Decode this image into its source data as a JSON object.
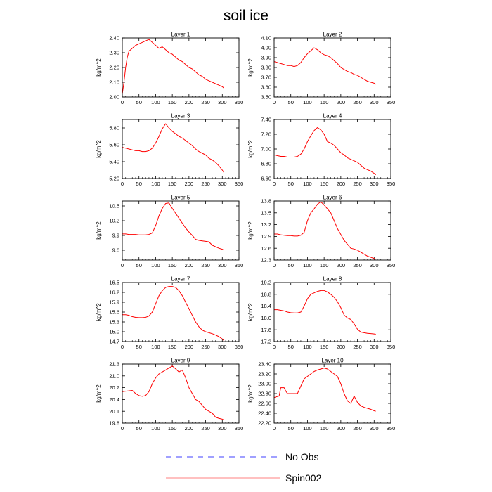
{
  "figure": {
    "title": "soil ice"
  },
  "legend": {
    "entries": [
      {
        "label": "No Obs",
        "color": "#4040ff",
        "dash": "dashed"
      },
      {
        "label": "Spin002",
        "color": "#ff8080",
        "dash": "solid"
      }
    ]
  },
  "colors": {
    "line": "#ff0000",
    "axis": "#000000"
  },
  "chart_data": [
    {
      "type": "line",
      "title": "Layer 1",
      "ylabel": "kg/m^2",
      "xlim": [
        0,
        350
      ],
      "ylim": [
        2.0,
        2.4
      ],
      "xticks": [
        "0",
        "50",
        "100",
        "150",
        "200",
        "250",
        "300",
        "350"
      ],
      "yticks": [
        "2.00",
        "2.10",
        "2.20",
        "2.30",
        "2.40"
      ],
      "series": [
        {
          "name": "Spin002",
          "x": [
            0,
            5,
            10,
            15,
            20,
            30,
            40,
            50,
            60,
            70,
            80,
            90,
            100,
            110,
            120,
            130,
            140,
            150,
            160,
            170,
            180,
            190,
            200,
            210,
            220,
            230,
            240,
            250,
            260,
            270,
            280,
            290,
            300,
            305
          ],
          "values": [
            2.02,
            2.1,
            2.2,
            2.27,
            2.31,
            2.33,
            2.35,
            2.36,
            2.37,
            2.38,
            2.39,
            2.37,
            2.35,
            2.33,
            2.34,
            2.32,
            2.3,
            2.29,
            2.27,
            2.25,
            2.24,
            2.22,
            2.2,
            2.19,
            2.17,
            2.15,
            2.14,
            2.12,
            2.11,
            2.1,
            2.09,
            2.08,
            2.07,
            2.06
          ]
        }
      ]
    },
    {
      "type": "line",
      "title": "Layer 2",
      "ylabel": "kg/m^2",
      "xlim": [
        0,
        350
      ],
      "ylim": [
        3.5,
        4.1
      ],
      "xticks": [
        "0",
        "50",
        "100",
        "150",
        "200",
        "250",
        "300",
        "350"
      ],
      "yticks": [
        "3.50",
        "3.60",
        "3.70",
        "3.80",
        "3.90",
        "4.00",
        "4.10"
      ],
      "series": [
        {
          "name": "Spin002",
          "x": [
            0,
            10,
            20,
            30,
            40,
            50,
            60,
            70,
            80,
            90,
            100,
            110,
            120,
            130,
            140,
            150,
            160,
            170,
            180,
            190,
            200,
            210,
            220,
            230,
            240,
            250,
            260,
            270,
            280,
            290,
            300,
            305
          ],
          "values": [
            3.86,
            3.85,
            3.84,
            3.83,
            3.82,
            3.82,
            3.81,
            3.82,
            3.85,
            3.9,
            3.94,
            3.97,
            4.0,
            3.98,
            3.95,
            3.93,
            3.92,
            3.9,
            3.87,
            3.84,
            3.8,
            3.78,
            3.76,
            3.75,
            3.73,
            3.72,
            3.7,
            3.68,
            3.66,
            3.65,
            3.64,
            3.63
          ]
        }
      ]
    },
    {
      "type": "line",
      "title": "Layer 3",
      "ylabel": "kg/m^2",
      "xlim": [
        0,
        350
      ],
      "ylim": [
        5.2,
        5.9
      ],
      "xticks": [
        "0",
        "50",
        "100",
        "150",
        "200",
        "250",
        "300",
        "350"
      ],
      "yticks": [
        "5.20",
        "5.40",
        "5.60",
        "5.80"
      ],
      "series": [
        {
          "name": "Spin002",
          "x": [
            0,
            10,
            20,
            30,
            40,
            50,
            60,
            70,
            80,
            90,
            100,
            110,
            120,
            130,
            140,
            150,
            160,
            170,
            180,
            190,
            200,
            210,
            220,
            230,
            240,
            250,
            260,
            270,
            280,
            290,
            300,
            305
          ],
          "values": [
            5.57,
            5.56,
            5.55,
            5.54,
            5.53,
            5.53,
            5.52,
            5.52,
            5.53,
            5.56,
            5.62,
            5.7,
            5.79,
            5.85,
            5.8,
            5.76,
            5.73,
            5.7,
            5.68,
            5.65,
            5.62,
            5.59,
            5.55,
            5.52,
            5.5,
            5.48,
            5.44,
            5.42,
            5.39,
            5.35,
            5.3,
            5.27
          ]
        }
      ]
    },
    {
      "type": "line",
      "title": "Layer 4",
      "ylabel": "kg/m^2",
      "xlim": [
        0,
        350
      ],
      "ylim": [
        6.6,
        7.4
      ],
      "xticks": [
        "0",
        "50",
        "100",
        "150",
        "200",
        "250",
        "300",
        "350"
      ],
      "yticks": [
        "6.60",
        "6.80",
        "7.00",
        "7.20",
        "7.40"
      ],
      "series": [
        {
          "name": "Spin002",
          "x": [
            0,
            10,
            20,
            30,
            40,
            50,
            60,
            70,
            80,
            90,
            100,
            110,
            120,
            130,
            140,
            150,
            160,
            170,
            180,
            190,
            200,
            210,
            220,
            230,
            240,
            250,
            260,
            270,
            280,
            290,
            300,
            305
          ],
          "values": [
            6.92,
            6.91,
            6.9,
            6.9,
            6.89,
            6.89,
            6.89,
            6.9,
            6.93,
            7.0,
            7.1,
            7.18,
            7.25,
            7.29,
            7.26,
            7.2,
            7.1,
            7.08,
            7.05,
            7.0,
            6.95,
            6.92,
            6.88,
            6.86,
            6.84,
            6.82,
            6.78,
            6.74,
            6.72,
            6.7,
            6.67,
            6.65
          ]
        }
      ]
    },
    {
      "type": "line",
      "title": "Layer 5",
      "ylabel": "kg/m^2",
      "xlim": [
        0,
        350
      ],
      "ylim": [
        9.4,
        10.6
      ],
      "xticks": [
        "0",
        "50",
        "100",
        "150",
        "200",
        "250",
        "300",
        "350"
      ],
      "yticks": [
        "9.6",
        "9.9",
        "10.2",
        "10.5"
      ],
      "series": [
        {
          "name": "Spin002",
          "x": [
            0,
            10,
            20,
            30,
            40,
            50,
            60,
            70,
            80,
            90,
            100,
            110,
            120,
            130,
            140,
            150,
            160,
            170,
            180,
            190,
            200,
            210,
            220,
            230,
            240,
            250,
            260,
            270,
            280,
            290,
            300,
            305
          ],
          "values": [
            9.93,
            9.93,
            9.92,
            9.92,
            9.92,
            9.91,
            9.91,
            9.91,
            9.92,
            9.95,
            10.1,
            10.3,
            10.45,
            10.55,
            10.56,
            10.45,
            10.35,
            10.25,
            10.15,
            10.05,
            9.97,
            9.9,
            9.82,
            9.8,
            9.79,
            9.78,
            9.77,
            9.7,
            9.67,
            9.64,
            9.62,
            9.6
          ]
        }
      ]
    },
    {
      "type": "line",
      "title": "Layer 6",
      "ylabel": "kg/m^2",
      "xlim": [
        0,
        350
      ],
      "ylim": [
        12.3,
        13.8
      ],
      "xticks": [
        "0",
        "50",
        "100",
        "150",
        "200",
        "250",
        "300",
        "350"
      ],
      "yticks": [
        "12.3",
        "12.6",
        "12.9",
        "13.2",
        "13.5",
        "13.8"
      ],
      "series": [
        {
          "name": "Spin002",
          "x": [
            0,
            10,
            20,
            30,
            40,
            50,
            60,
            70,
            80,
            90,
            100,
            110,
            120,
            130,
            140,
            150,
            160,
            170,
            180,
            190,
            200,
            210,
            220,
            230,
            240,
            250,
            260,
            270,
            280,
            290,
            300,
            305
          ],
          "values": [
            12.96,
            12.96,
            12.94,
            12.93,
            12.92,
            12.92,
            12.91,
            12.91,
            12.93,
            13.0,
            13.3,
            13.5,
            13.6,
            13.72,
            13.78,
            13.7,
            13.6,
            13.5,
            13.3,
            13.1,
            12.95,
            12.8,
            12.7,
            12.6,
            12.58,
            12.55,
            12.5,
            12.45,
            12.4,
            12.37,
            12.34,
            12.32
          ]
        }
      ]
    },
    {
      "type": "line",
      "title": "Layer 7",
      "ylabel": "kg/m^2",
      "xlim": [
        0,
        350
      ],
      "ylim": [
        14.7,
        16.5
      ],
      "xticks": [
        "0",
        "50",
        "100",
        "150",
        "200",
        "250",
        "300",
        "350"
      ],
      "yticks": [
        "14.7",
        "15.0",
        "15.3",
        "15.6",
        "15.9",
        "16.2",
        "16.5"
      ],
      "series": [
        {
          "name": "Spin002",
          "x": [
            0,
            10,
            20,
            30,
            40,
            50,
            60,
            70,
            80,
            90,
            100,
            110,
            120,
            130,
            140,
            150,
            160,
            170,
            180,
            190,
            200,
            210,
            220,
            230,
            240,
            250,
            260,
            270,
            280,
            290,
            300,
            305
          ],
          "values": [
            15.52,
            15.52,
            15.5,
            15.46,
            15.44,
            15.43,
            15.43,
            15.44,
            15.48,
            15.6,
            15.85,
            16.1,
            16.25,
            16.35,
            16.38,
            16.38,
            16.35,
            16.25,
            16.1,
            15.9,
            15.7,
            15.5,
            15.3,
            15.15,
            15.05,
            15.0,
            14.97,
            14.94,
            14.9,
            14.85,
            14.78,
            14.73
          ]
        }
      ]
    },
    {
      "type": "line",
      "title": "Layer 8",
      "ylabel": "kg/m^2",
      "xlim": [
        0,
        350
      ],
      "ylim": [
        17.2,
        19.2
      ],
      "xticks": [
        "0",
        "50",
        "100",
        "150",
        "200",
        "250",
        "300",
        "350"
      ],
      "yticks": [
        "17.2",
        "17.6",
        "18.0",
        "18.4",
        "18.8",
        "19.2"
      ],
      "series": [
        {
          "name": "Spin002",
          "x": [
            0,
            10,
            20,
            30,
            40,
            50,
            60,
            70,
            80,
            90,
            100,
            110,
            120,
            130,
            140,
            150,
            160,
            170,
            180,
            190,
            200,
            210,
            220,
            230,
            240,
            250,
            260,
            270,
            280,
            290,
            300,
            305
          ],
          "values": [
            18.28,
            18.28,
            18.26,
            18.24,
            18.2,
            18.18,
            18.17,
            18.17,
            18.2,
            18.4,
            18.65,
            18.8,
            18.85,
            18.9,
            18.93,
            18.93,
            18.88,
            18.8,
            18.7,
            18.55,
            18.35,
            18.1,
            18.0,
            17.95,
            17.8,
            17.62,
            17.52,
            17.5,
            17.48,
            17.47,
            17.46,
            17.45
          ]
        }
      ]
    },
    {
      "type": "line",
      "title": "Layer 9",
      "ylabel": "kg/m^2",
      "xlim": [
        0,
        350
      ],
      "ylim": [
        19.8,
        21.3
      ],
      "xticks": [
        "0",
        "50",
        "100",
        "150",
        "200",
        "250",
        "300",
        "350"
      ],
      "yticks": [
        "19.8",
        "20.1",
        "20.4",
        "20.7",
        "21.0",
        "21.3"
      ],
      "series": [
        {
          "name": "Spin002",
          "x": [
            0,
            10,
            20,
            30,
            40,
            50,
            60,
            70,
            80,
            90,
            100,
            110,
            120,
            130,
            140,
            150,
            160,
            170,
            180,
            190,
            200,
            210,
            220,
            230,
            240,
            250,
            260,
            270,
            280,
            290,
            300,
            305
          ],
          "values": [
            20.6,
            20.61,
            20.62,
            20.63,
            20.55,
            20.5,
            20.48,
            20.5,
            20.6,
            20.8,
            20.95,
            21.05,
            21.1,
            21.15,
            21.2,
            21.25,
            21.18,
            21.1,
            21.15,
            20.95,
            20.7,
            20.55,
            20.4,
            20.35,
            20.25,
            20.15,
            20.1,
            20.05,
            19.95,
            19.92,
            19.9,
            19.88
          ]
        }
      ]
    },
    {
      "type": "line",
      "title": "Layer 10",
      "ylabel": "kg/m^2",
      "xlim": [
        0,
        350
      ],
      "ylim": [
        22.2,
        23.4
      ],
      "xticks": [
        "0",
        "50",
        "100",
        "150",
        "200",
        "250",
        "300",
        "350"
      ],
      "yticks": [
        "22.20",
        "22.40",
        "22.60",
        "22.80",
        "23.00",
        "23.20",
        "23.40"
      ],
      "series": [
        {
          "name": "Spin002",
          "x": [
            0,
            10,
            15,
            20,
            30,
            35,
            40,
            50,
            60,
            70,
            80,
            90,
            100,
            110,
            120,
            130,
            140,
            150,
            160,
            170,
            180,
            190,
            200,
            210,
            220,
            230,
            240,
            250,
            260,
            270,
            280,
            290,
            300,
            305
          ],
          "values": [
            22.72,
            22.74,
            22.75,
            22.92,
            22.92,
            22.85,
            22.8,
            22.8,
            22.8,
            22.8,
            22.95,
            23.1,
            23.15,
            23.2,
            23.25,
            23.28,
            23.3,
            23.32,
            23.3,
            23.25,
            23.2,
            23.15,
            23.0,
            22.8,
            22.65,
            22.6,
            22.75,
            22.62,
            22.55,
            22.52,
            22.5,
            22.48,
            22.45,
            22.44
          ]
        }
      ]
    }
  ]
}
